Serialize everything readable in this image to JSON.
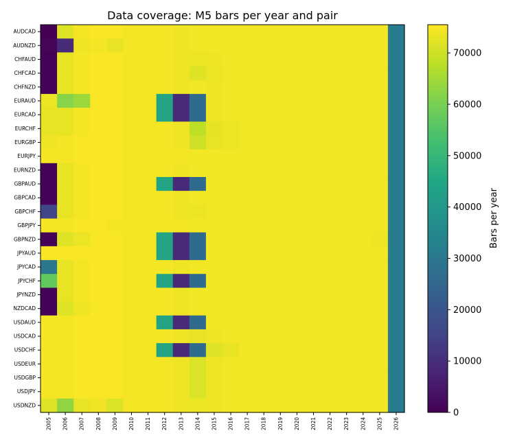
{
  "chart_data": {
    "type": "heatmap",
    "title": "Data coverage: M5 bars per year and pair",
    "colorbar_label": "Bars per year",
    "colormap": "viridis",
    "vmin": 0,
    "vmax": 75500,
    "colorbar_ticks": [
      0,
      10000,
      20000,
      30000,
      40000,
      50000,
      60000,
      70000
    ],
    "colorbar_tick_labels": [
      "0",
      "10000",
      "20000",
      "30000",
      "40000",
      "50000",
      "60000",
      "70000"
    ],
    "years": [
      "2005",
      "2006",
      "2007",
      "2008",
      "2009",
      "2010",
      "2011",
      "2012",
      "2013",
      "2014",
      "2015",
      "2016",
      "2017",
      "2018",
      "2019",
      "2020",
      "2021",
      "2022",
      "2023",
      "2024",
      "2025",
      "2026"
    ],
    "pairs": [
      "AUDCAD",
      "AUDNZD",
      "CHFAUD",
      "CHFCAD",
      "CHFNZD",
      "EURAUD",
      "EURCAD",
      "EURCHF",
      "EURGBP",
      "EURJPY",
      "EURNZD",
      "GBPAUD",
      "GBPCAD",
      "GBPCHF",
      "GBPJPY",
      "GBPNZD",
      "JPYAUD",
      "JPYCAD",
      "JPYCHF",
      "JPYNZD",
      "NZDCAD",
      "USDAUD",
      "USDCAD",
      "USDCHF",
      "USDEUR",
      "USDGBP",
      "USDJPY",
      "USDNZD"
    ],
    "values": [
      [
        0,
        72000,
        74500,
        75000,
        75000,
        74600,
        74600,
        74400,
        74000,
        74300,
        74300,
        74300,
        74300,
        74300,
        74300,
        74300,
        74300,
        74300,
        74300,
        74300,
        74300,
        31000
      ],
      [
        1000,
        9000,
        74000,
        74500,
        73000,
        74600,
        74600,
        74400,
        74000,
        74300,
        74300,
        74300,
        74300,
        74300,
        74300,
        74300,
        74300,
        74300,
        74300,
        74300,
        74300,
        31000
      ],
      [
        500,
        73000,
        74500,
        75000,
        75000,
        74600,
        74600,
        74400,
        74000,
        73500,
        74000,
        74300,
        74300,
        74300,
        74300,
        74300,
        74300,
        74300,
        74300,
        74300,
        74300,
        31000
      ],
      [
        500,
        73000,
        74500,
        75000,
        75000,
        74600,
        74600,
        74400,
        74000,
        72000,
        73500,
        74300,
        74300,
        74300,
        74300,
        74300,
        74300,
        74300,
        74300,
        74300,
        74300,
        31000
      ],
      [
        500,
        73000,
        74500,
        75000,
        75000,
        74600,
        74600,
        74400,
        74000,
        74300,
        74000,
        74300,
        74300,
        74300,
        74300,
        74300,
        74300,
        74300,
        74300,
        74300,
        74300,
        31000
      ],
      [
        73500,
        62000,
        64000,
        75000,
        75000,
        74600,
        74600,
        44000,
        9000,
        26000,
        74000,
        74300,
        74300,
        74300,
        74300,
        74300,
        74300,
        74300,
        74300,
        74300,
        74300,
        31000
      ],
      [
        73000,
        73000,
        74500,
        75000,
        75000,
        74600,
        74600,
        44000,
        9000,
        26000,
        74000,
        74300,
        74300,
        74300,
        74300,
        74300,
        74300,
        74300,
        74300,
        74300,
        74300,
        31000
      ],
      [
        73000,
        73000,
        74500,
        75000,
        75000,
        74600,
        74600,
        74400,
        74000,
        68000,
        72500,
        73500,
        74300,
        74300,
        74300,
        74300,
        74300,
        74300,
        74300,
        74300,
        74300,
        31000
      ],
      [
        74000,
        74500,
        75000,
        75000,
        75000,
        74600,
        74600,
        74400,
        74000,
        70000,
        73000,
        73500,
        74300,
        74300,
        74300,
        74300,
        74300,
        74300,
        74300,
        74300,
        74300,
        31000
      ],
      [
        74500,
        74500,
        75000,
        75000,
        75000,
        74600,
        74600,
        74400,
        74400,
        74300,
        74300,
        74300,
        74300,
        74300,
        74300,
        74300,
        74300,
        74300,
        74300,
        74300,
        74300,
        31000
      ],
      [
        500,
        73000,
        74500,
        75000,
        75000,
        74600,
        74600,
        74400,
        74000,
        74300,
        74300,
        74300,
        74300,
        74300,
        74300,
        74300,
        74300,
        74300,
        74300,
        74300,
        74300,
        31000
      ],
      [
        500,
        73000,
        74500,
        75000,
        75000,
        74600,
        74600,
        44000,
        9000,
        26000,
        74300,
        74300,
        74300,
        74300,
        74300,
        74300,
        74300,
        74300,
        74300,
        74300,
        74300,
        31000
      ],
      [
        500,
        73000,
        74500,
        75000,
        75000,
        74600,
        74600,
        74400,
        74000,
        74300,
        74300,
        74300,
        74300,
        74300,
        74300,
        74300,
        74300,
        74300,
        74300,
        74300,
        74300,
        31000
      ],
      [
        16000,
        73000,
        74500,
        75000,
        75000,
        74600,
        74600,
        74400,
        74000,
        73500,
        74300,
        74300,
        74300,
        74300,
        74300,
        74300,
        74300,
        74300,
        74300,
        74300,
        74300,
        31000
      ],
      [
        74500,
        74500,
        75000,
        75000,
        74500,
        74600,
        74600,
        74400,
        74400,
        74300,
        74300,
        74300,
        74300,
        74300,
        74300,
        74300,
        74300,
        74300,
        74300,
        74300,
        74300,
        31000
      ],
      [
        500,
        72000,
        73500,
        75000,
        75000,
        74600,
        74600,
        44000,
        9000,
        26000,
        74300,
        74300,
        74300,
        74300,
        74300,
        74300,
        74300,
        74300,
        74300,
        74300,
        74000,
        31000
      ],
      [
        75000,
        75000,
        75000,
        75000,
        75000,
        74600,
        74600,
        44000,
        9000,
        26000,
        74300,
        74300,
        74300,
        74300,
        74300,
        74300,
        74300,
        74300,
        74300,
        74300,
        74300,
        31000
      ],
      [
        30000,
        73000,
        74500,
        75000,
        75000,
        74600,
        74600,
        74400,
        74000,
        74300,
        74300,
        74300,
        74300,
        74300,
        74300,
        74300,
        74300,
        74300,
        74300,
        74300,
        74300,
        31000
      ],
      [
        57000,
        73000,
        74500,
        75000,
        75000,
        74600,
        74600,
        44000,
        9000,
        26000,
        74300,
        74300,
        74300,
        74300,
        74300,
        74300,
        74300,
        74300,
        74300,
        74300,
        74300,
        31000
      ],
      [
        500,
        73000,
        74500,
        75000,
        75000,
        74600,
        74600,
        74400,
        74000,
        74300,
        74300,
        74300,
        74300,
        74300,
        74300,
        74300,
        74300,
        74300,
        74300,
        74300,
        74300,
        31000
      ],
      [
        500,
        72000,
        74000,
        75000,
        75000,
        74600,
        74600,
        74400,
        74000,
        74300,
        74300,
        74300,
        74300,
        74300,
        74300,
        74300,
        74300,
        74300,
        74300,
        74300,
        74300,
        31000
      ],
      [
        74500,
        74500,
        75000,
        75000,
        75000,
        74600,
        74600,
        44000,
        9000,
        26000,
        74300,
        74300,
        74300,
        74300,
        74300,
        74300,
        74300,
        74300,
        74300,
        74300,
        74300,
        31000
      ],
      [
        74500,
        74500,
        75000,
        75000,
        75000,
        74600,
        74600,
        74400,
        74000,
        73000,
        74000,
        74300,
        74300,
        74300,
        74300,
        74300,
        74300,
        74300,
        74300,
        74300,
        74300,
        31000
      ],
      [
        74500,
        74500,
        75000,
        75000,
        75000,
        74600,
        74600,
        44000,
        9000,
        26000,
        72000,
        73000,
        74300,
        74300,
        74300,
        74300,
        74300,
        74300,
        74300,
        74300,
        74300,
        31000
      ],
      [
        74500,
        74500,
        75000,
        75000,
        75000,
        74600,
        74600,
        74400,
        74000,
        71500,
        74000,
        74300,
        74300,
        74300,
        74300,
        74300,
        74300,
        74300,
        74300,
        74300,
        74300,
        31000
      ],
      [
        74500,
        74500,
        75000,
        75000,
        75000,
        74600,
        74600,
        74400,
        74000,
        71500,
        74000,
        74300,
        74300,
        74300,
        74300,
        74300,
        74300,
        74300,
        74300,
        74300,
        74300,
        31000
      ],
      [
        74500,
        74500,
        75000,
        75000,
        75000,
        74600,
        74600,
        74400,
        74000,
        71500,
        74000,
        74300,
        74300,
        74300,
        74300,
        74300,
        74300,
        74300,
        74300,
        74300,
        74300,
        31000
      ],
      [
        72000,
        63000,
        73000,
        74000,
        71500,
        74600,
        74600,
        74400,
        74000,
        73500,
        74000,
        74300,
        74300,
        74300,
        74300,
        74300,
        74300,
        74300,
        74300,
        74300,
        74300,
        31000
      ]
    ]
  }
}
